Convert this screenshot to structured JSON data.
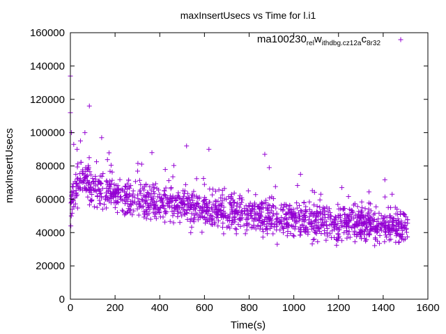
{
  "chart_data": {
    "type": "scatter",
    "title": "maxInsertUsecs vs Time for l.i1",
    "xlabel": "Time(s)",
    "ylabel": "maxInsertUsecs",
    "xlim": [
      0,
      1600
    ],
    "ylim": [
      0,
      160000
    ],
    "xticks": [
      "0",
      "200",
      "400",
      "600",
      "800",
      "1000",
      "1200",
      "1400",
      "1600"
    ],
    "yticks": [
      "0",
      "20000",
      "40000",
      "60000",
      "80000",
      "100000",
      "120000",
      "140000",
      "160000"
    ],
    "grid": false,
    "legend_position": "top-right",
    "series": [
      {
        "name": "ma100230_rel_withdbg.cz12a_c8r32",
        "name_parts": [
          {
            "text": "ma100230",
            "sub": false
          },
          {
            "text": "rel",
            "sub": true
          },
          {
            "text": "w",
            "sub": false
          },
          {
            "text": "ithdbg.cz12a",
            "sub": true
          },
          {
            "text": "c",
            "sub": false
          },
          {
            "text": "8r32",
            "sub": true
          }
        ],
        "color": "#9400d3",
        "marker": "plus",
        "outliers": [
          [
            0,
            134000
          ],
          [
            0,
            112000
          ],
          [
            5,
            100000
          ],
          [
            15,
            93000
          ],
          [
            30,
            90000
          ],
          [
            45,
            95000
          ],
          [
            65,
            100000
          ],
          [
            85,
            116000
          ],
          [
            140,
            97000
          ],
          [
            365,
            88000
          ],
          [
            520,
            92000
          ],
          [
            620,
            90000
          ],
          [
            870,
            87000
          ],
          [
            890,
            79000
          ],
          [
            1030,
            75000
          ],
          [
            1215,
            67000
          ],
          [
            1440,
            63000
          ],
          [
            2,
            44000
          ],
          [
            8,
            54000
          ],
          [
            4,
            50000
          ]
        ],
        "trend": [
          [
            0,
            58000
          ],
          [
            50,
            73000
          ],
          [
            100,
            67000
          ],
          [
            200,
            62000
          ],
          [
            400,
            58000
          ],
          [
            600,
            54000
          ],
          [
            800,
            51000
          ],
          [
            1000,
            48000
          ],
          [
            1200,
            46000
          ],
          [
            1400,
            44000
          ],
          [
            1510,
            43000
          ]
        ],
        "spread": 9000,
        "x_max": 1510,
        "count": 1500
      }
    ]
  }
}
